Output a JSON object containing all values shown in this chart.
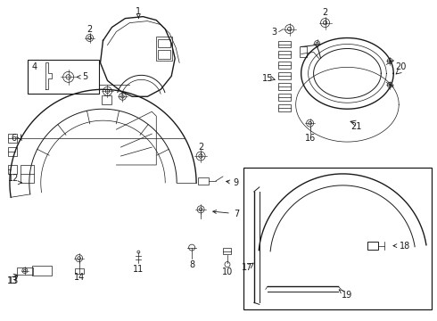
{
  "bg_color": "#ffffff",
  "line_color": "#1a1a1a",
  "lw_main": 1.0,
  "lw_med": 0.7,
  "lw_thin": 0.5,
  "fig_width": 4.9,
  "fig_height": 3.6,
  "dpi": 100
}
